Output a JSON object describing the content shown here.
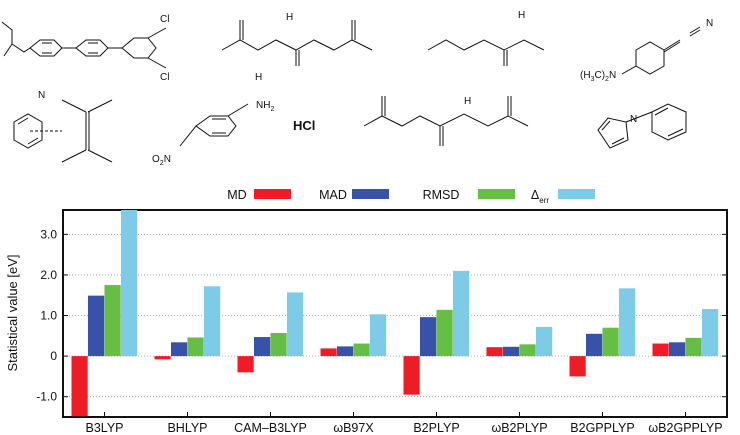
{
  "figure": {
    "molecule_labels": {
      "cl_top": "Cl",
      "cl_bottom": "Cl",
      "n": "N",
      "h": "H",
      "nh2": "NH",
      "nh2_sub": "2",
      "o2n": "O",
      "o2n_sub": "2",
      "o2n_n": "N",
      "h3c2n_open": "(H",
      "h3c2n_3": "3",
      "h3c2n_c": "C)",
      "h3c2n_2": "2",
      "h3c2n_n": "N",
      "hcl": "HCl"
    }
  },
  "chart_data": {
    "type": "bar",
    "ylabel": "Statistical value [eV]",
    "ylim": [
      -1.5,
      3.6
    ],
    "yticks": [
      "-1.0",
      "0",
      "1.0",
      "2.0",
      "3.0"
    ],
    "ytick_values": [
      -1.0,
      0,
      1.0,
      2.0,
      3.0
    ],
    "grid": "horizontal dotted",
    "legend_position": "top",
    "categories": [
      "B3LYP",
      "BHLYP",
      "CAM–B3LYP",
      "ωB97X",
      "B2PLYP",
      "ωB2PLYP",
      "B2GPPLYP",
      "ωB2GPPLYP"
    ],
    "series": [
      {
        "name": "MD",
        "color": "#ee1c25",
        "values": [
          -1.48,
          -0.08,
          -0.4,
          0.19,
          -0.95,
          0.22,
          -0.5,
          0.31
        ]
      },
      {
        "name": "MAD",
        "color": "#3752a8",
        "values": [
          1.49,
          0.34,
          0.47,
          0.24,
          0.96,
          0.23,
          0.55,
          0.34
        ]
      },
      {
        "name": "RMSD",
        "color": "#66be45",
        "values": [
          1.75,
          0.46,
          0.57,
          0.31,
          1.14,
          0.29,
          0.7,
          0.45
        ]
      },
      {
        "name": "Δ",
        "subscript": "err",
        "color": "#7ecbe8",
        "values": [
          3.6,
          1.72,
          1.57,
          1.03,
          2.1,
          0.72,
          1.67,
          1.16
        ]
      }
    ]
  }
}
